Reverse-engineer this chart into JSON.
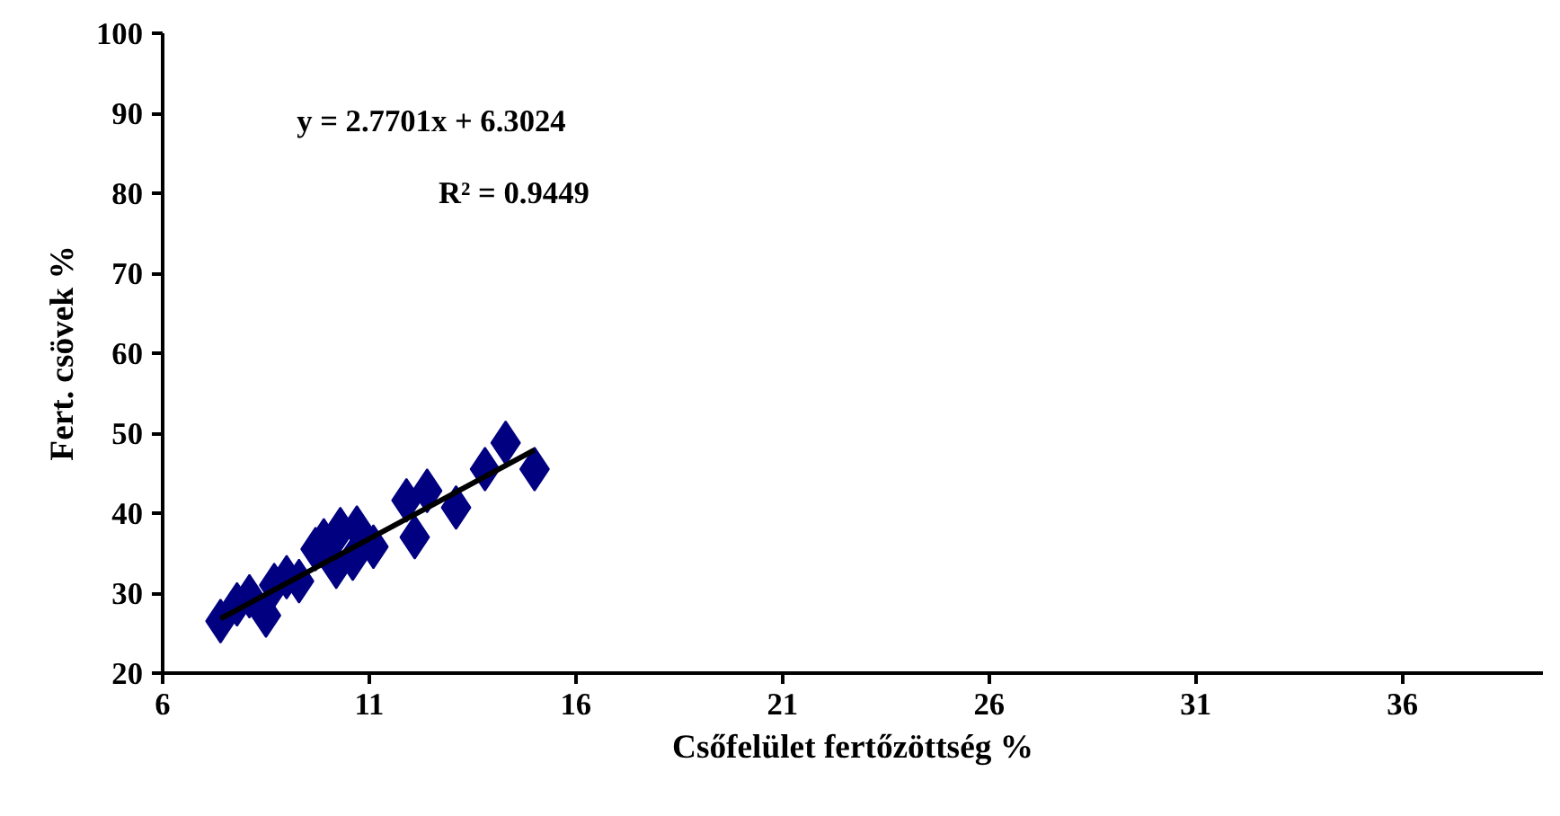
{
  "chart_data": {
    "type": "scatter",
    "xlabel": "Csőfelület fertőzöttség %",
    "ylabel": "Fert. csövek %",
    "xlim": [
      6,
      39.4
    ],
    "xticks": [
      6,
      11,
      16,
      21,
      26,
      31,
      36
    ],
    "ylim": [
      20,
      100
    ],
    "yticks": [
      20,
      30,
      40,
      50,
      60,
      70,
      80,
      90,
      100
    ],
    "grid": false,
    "annotations": [
      "y = 2.7701x + 6.3024",
      "R² = 0.9449"
    ],
    "series": [
      {
        "marker": "diamond",
        "color": "#000080",
        "x": [
          7.4,
          7.8,
          8.1,
          8.5,
          8.7,
          9.0,
          9.3,
          9.7,
          9.9,
          10.2,
          10.3,
          10.7,
          10.6,
          11.1,
          12.1,
          11.9,
          12.4,
          13.1,
          14.3,
          13.8,
          15.0
        ],
        "values": [
          26.5,
          28.6,
          29.6,
          27.2,
          31,
          32,
          31.5,
          35.5,
          36.6,
          33.3,
          38,
          38.2,
          34.3,
          35.8,
          37,
          41.6,
          42.8,
          40.7,
          48.8,
          45.5,
          45.5
        ]
      },
      {
        "type": "line",
        "color": "#000000",
        "x": [
          7.4,
          15.0
        ],
        "values": [
          26.8,
          47.9
        ],
        "line_style": "solid"
      }
    ]
  }
}
